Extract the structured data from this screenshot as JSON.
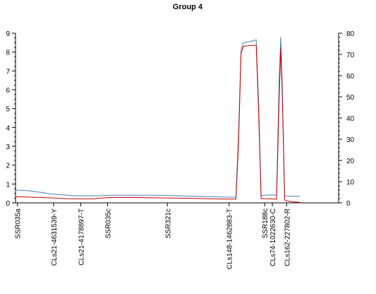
{
  "chart_data": {
    "type": "line",
    "title": "Group 4",
    "xlabel": "",
    "ylabel": "",
    "y_left": {
      "range": [
        0,
        9
      ],
      "ticks": [
        "0",
        "1",
        "2",
        "3",
        "4",
        "5",
        "6",
        "7",
        "8",
        "9"
      ]
    },
    "y_right": {
      "range": [
        0,
        80
      ],
      "ticks": [
        "0",
        "10",
        "20",
        "30",
        "40",
        "50",
        "60",
        "70",
        "80"
      ]
    },
    "x_range": [
      0,
      100
    ],
    "grid": false,
    "legend": "none",
    "markers": [
      {
        "label": "SSR035a",
        "pos": 0.6
      },
      {
        "label": "CLs21-4631539-Y",
        "pos": 11.8
      },
      {
        "label": "CLs21-4178897-T",
        "pos": 20.2
      },
      {
        "label": "SSR035c",
        "pos": 28.5
      },
      {
        "label": "SSR321c",
        "pos": 47.0
      },
      {
        "label": "CLs148-1462883-T",
        "pos": 66.1
      },
      {
        "label": "SSR188c",
        "pos": 77.1
      },
      {
        "label": "CLs74-1022630-C",
        "pos": 79.5
      },
      {
        "label": "CLs162-227802-R",
        "pos": 83.9
      }
    ],
    "series": [
      {
        "axis": "left",
        "color": "#4a7fb5",
        "points": [
          [
            0,
            0.68
          ],
          [
            2,
            0.66
          ],
          [
            4,
            0.64
          ],
          [
            6,
            0.6
          ],
          [
            8,
            0.55
          ],
          [
            10,
            0.5
          ],
          [
            12,
            0.46
          ],
          [
            14,
            0.43
          ],
          [
            16,
            0.4
          ],
          [
            18,
            0.38
          ],
          [
            20,
            0.37
          ],
          [
            24,
            0.37
          ],
          [
            28,
            0.39
          ],
          [
            30,
            0.4
          ],
          [
            36,
            0.4
          ],
          [
            42,
            0.4
          ],
          [
            46,
            0.39
          ],
          [
            50,
            0.38
          ],
          [
            56,
            0.35
          ],
          [
            62,
            0.32
          ],
          [
            66.1,
            0.3
          ],
          [
            68.2,
            0.3
          ],
          [
            69.0,
            3.5
          ],
          [
            69.8,
            8.1
          ],
          [
            70.5,
            8.5
          ],
          [
            72.5,
            8.55
          ],
          [
            74,
            8.62
          ],
          [
            74.5,
            8.65
          ],
          [
            75.3,
            5.0
          ],
          [
            76,
            0.38
          ],
          [
            77,
            0.4
          ],
          [
            79,
            0.42
          ],
          [
            80.8,
            0.4
          ],
          [
            81.6,
            6.5
          ],
          [
            82.1,
            8.8
          ],
          [
            82.6,
            6.0
          ],
          [
            83.3,
            0.38
          ],
          [
            84,
            0.36
          ],
          [
            86,
            0.35
          ],
          [
            88,
            0.35
          ]
        ]
      },
      {
        "axis": "left",
        "color": "#cc0000",
        "points": [
          [
            0,
            0.32
          ],
          [
            4,
            0.31
          ],
          [
            8,
            0.28
          ],
          [
            12,
            0.26
          ],
          [
            16,
            0.22
          ],
          [
            20,
            0.21
          ],
          [
            24,
            0.21
          ],
          [
            28,
            0.27
          ],
          [
            30,
            0.28
          ],
          [
            36,
            0.28
          ],
          [
            42,
            0.27
          ],
          [
            46,
            0.26
          ],
          [
            50,
            0.25
          ],
          [
            56,
            0.23
          ],
          [
            62,
            0.21
          ],
          [
            66.1,
            0.2
          ],
          [
            68.2,
            0.2
          ],
          [
            69.0,
            3.0
          ],
          [
            69.8,
            7.9
          ],
          [
            70.5,
            8.3
          ],
          [
            72.5,
            8.35
          ],
          [
            74,
            8.35
          ],
          [
            74.5,
            8.35
          ],
          [
            75.3,
            4.5
          ],
          [
            76,
            0.22
          ],
          [
            77,
            0.22
          ],
          [
            79,
            0.21
          ],
          [
            80.8,
            0.2
          ],
          [
            81.6,
            5.5
          ],
          [
            82.1,
            8.2
          ],
          [
            82.6,
            5.5
          ],
          [
            83.3,
            0.15
          ],
          [
            84,
            0.1
          ],
          [
            86,
            0.05
          ],
          [
            88,
            0.03
          ]
        ]
      }
    ]
  }
}
